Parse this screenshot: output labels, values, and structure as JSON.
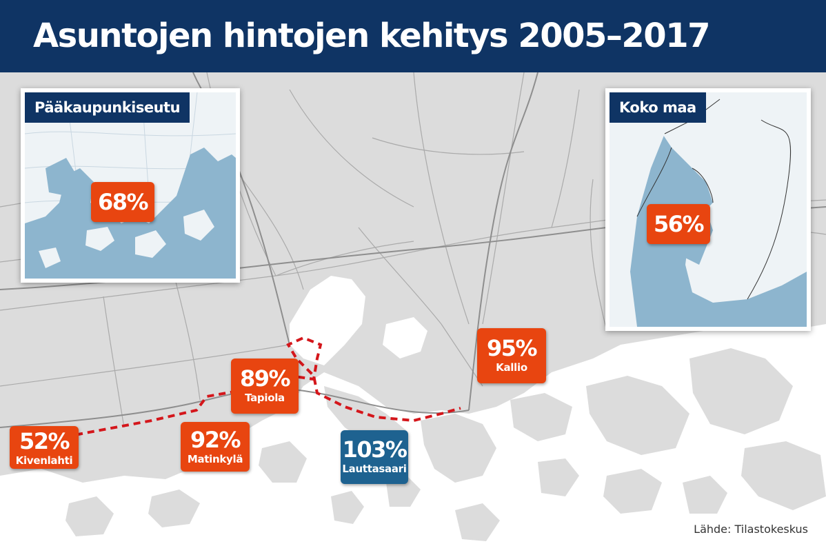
{
  "title": "Asuntojen hintojen kehitys 2005–2017",
  "colors": {
    "header_bg": "#0f3464",
    "orange_label": "#e84510",
    "blue_label": "#1e6290",
    "water_inset": "#8db5ce",
    "land_main": "#dcdcdc",
    "water_main": "#ffffff",
    "route": "#d4161b"
  },
  "insets": {
    "capital_region": {
      "title": "Pääkaupunkiseutu",
      "value": "68%"
    },
    "whole_country": {
      "title": "Koko maa",
      "value": "56%"
    }
  },
  "labels": [
    {
      "id": "kivenlahti",
      "value": "52%",
      "place": "Kivenlahti",
      "color": "orange"
    },
    {
      "id": "matinkyla",
      "value": "92%",
      "place": "Matinkylä",
      "color": "orange"
    },
    {
      "id": "tapiola",
      "value": "89%",
      "place": "Tapiola",
      "color": "orange"
    },
    {
      "id": "lauttasaari",
      "value": "103%",
      "place": "Lauttasaari",
      "color": "blue"
    },
    {
      "id": "kallio",
      "value": "95%",
      "place": "Kallio",
      "color": "orange"
    }
  ],
  "route_line": {
    "style": "dashed",
    "meaning": "metro line Kivenlahti–Helsinki"
  },
  "source": "Lähde: Tilastokeskus"
}
